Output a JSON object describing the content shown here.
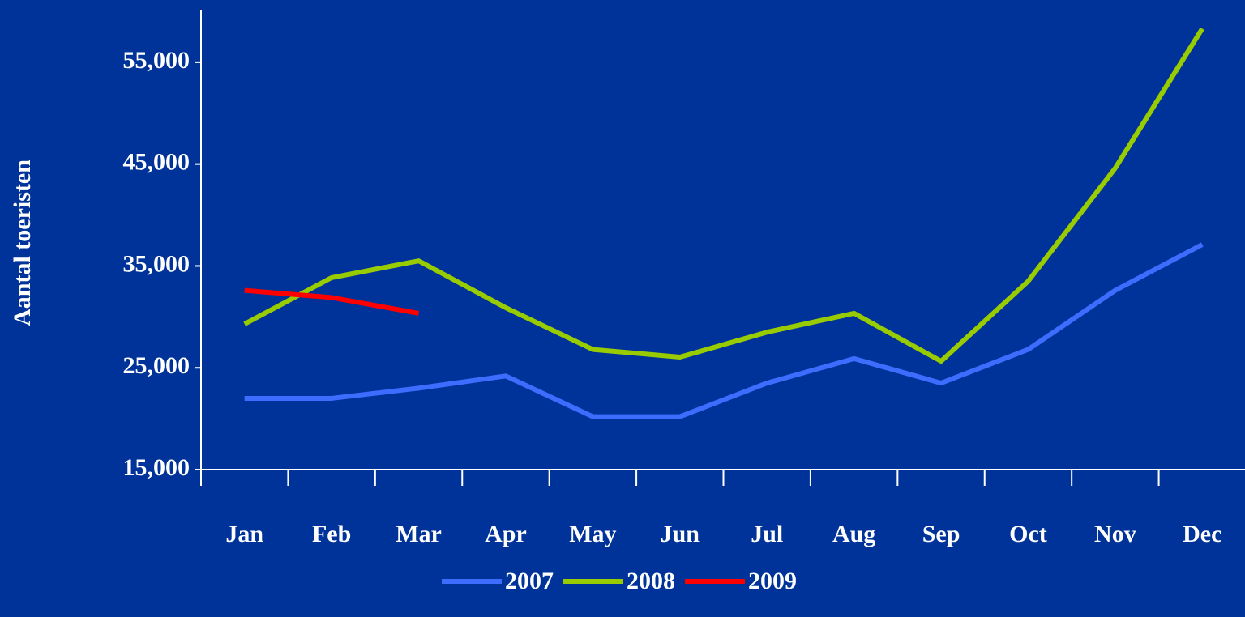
{
  "chart_data": {
    "type": "line",
    "y_label": "Aantal toeristen",
    "categories": [
      "Jan",
      "Feb",
      "Mar",
      "Apr",
      "May",
      "Jun",
      "Jul",
      "Aug",
      "Sep",
      "Oct",
      "Nov",
      "Dec"
    ],
    "series": [
      {
        "name": "2007",
        "color": "#3d6dff",
        "values": [
          22000,
          22000,
          23000,
          24200,
          20200,
          20200,
          23500,
          25900,
          23500,
          26800,
          32600,
          37100
        ]
      },
      {
        "name": "2008",
        "color": "#99cc00",
        "values": [
          29300,
          33850,
          35500,
          30900,
          26800,
          26050,
          28500,
          30350,
          25650,
          33500,
          44600,
          58300
        ]
      },
      {
        "name": "2009",
        "color": "#ff0000",
        "values": [
          32600,
          31900,
          30350,
          null,
          null,
          null,
          null,
          null,
          null,
          null,
          null,
          null
        ]
      }
    ],
    "ylim": [
      15000,
      60000
    ],
    "yticks": [
      {
        "value": 15000,
        "label": "15,000"
      },
      {
        "value": 25000,
        "label": "25,000"
      },
      {
        "value": 35000,
        "label": "35,000"
      },
      {
        "value": 45000,
        "label": "45,000"
      },
      {
        "value": 55000,
        "label": "55,000"
      }
    ],
    "grid": false,
    "legend": "bottom"
  }
}
